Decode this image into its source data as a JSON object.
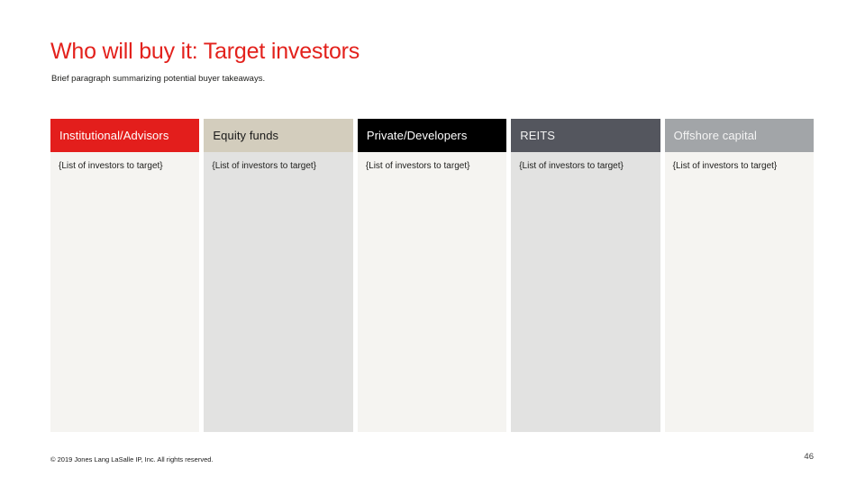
{
  "slide": {
    "title": "Who will buy it: Target investors",
    "subtitle": "Brief paragraph summarizing potential buyer takeaways.",
    "footer": "© 2019 Jones Lang LaSalle IP, Inc. All rights reserved.",
    "page_number": "46"
  },
  "colors": {
    "title_red": "#e3211c",
    "body_text": "#1d1d1b"
  },
  "columns": [
    {
      "header": "Institutional/Advisors",
      "body": "{List of investors to target}",
      "header_bg": "#e31e1c",
      "header_color": "#ffffff",
      "body_bg": "#f5f4f1"
    },
    {
      "header": "Equity funds",
      "body": "{List of investors to target}",
      "header_bg": "#d3cdbd",
      "header_color": "#1a1a1a",
      "body_bg": "#e2e2e1"
    },
    {
      "header": "Private/Developers",
      "body": "{List of investors to target}",
      "header_bg": "#000000",
      "header_color": "#ffffff",
      "body_bg": "#f5f4f1"
    },
    {
      "header": "REITS",
      "body": "{List of investors to target}",
      "header_bg": "#54565e",
      "header_color": "#f2f2f2",
      "body_bg": "#e2e2e1"
    },
    {
      "header": "Offshore capital",
      "body": "{List of investors to target}",
      "header_bg": "#a2a5a8",
      "header_color": "#f4f4f4",
      "body_bg": "#f5f4f1"
    }
  ]
}
